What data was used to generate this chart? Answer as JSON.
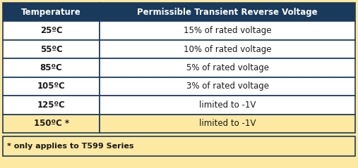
{
  "header": [
    "Temperature",
    "Permissible Transient Reverse Voltage"
  ],
  "rows": [
    [
      "25ºC",
      "15% of rated voltage"
    ],
    [
      "55ºC",
      "10% of rated voltage"
    ],
    [
      "85ºC",
      "5% of rated voltage"
    ],
    [
      "105ºC",
      "3% of rated voltage"
    ],
    [
      "125ºC",
      "limited to -1V"
    ],
    [
      "150ºC *",
      "limited to -1V"
    ]
  ],
  "header_bg": "#1a3a5c",
  "header_fg": "#ffffff",
  "row_bg_normal": "#ffffff",
  "row_bg_highlight": "#fde9a2",
  "row_fg": "#1a1a1a",
  "border_color": "#1a3a5c",
  "footer_text": "* only applies to T599 Series",
  "footer_bg": "#fde9a2",
  "col_split": 0.275,
  "figsize": [
    5.07,
    2.39
  ],
  "dpi": 100,
  "font_size_header": 8.5,
  "font_size_body": 8.5,
  "font_size_footer": 8.0
}
